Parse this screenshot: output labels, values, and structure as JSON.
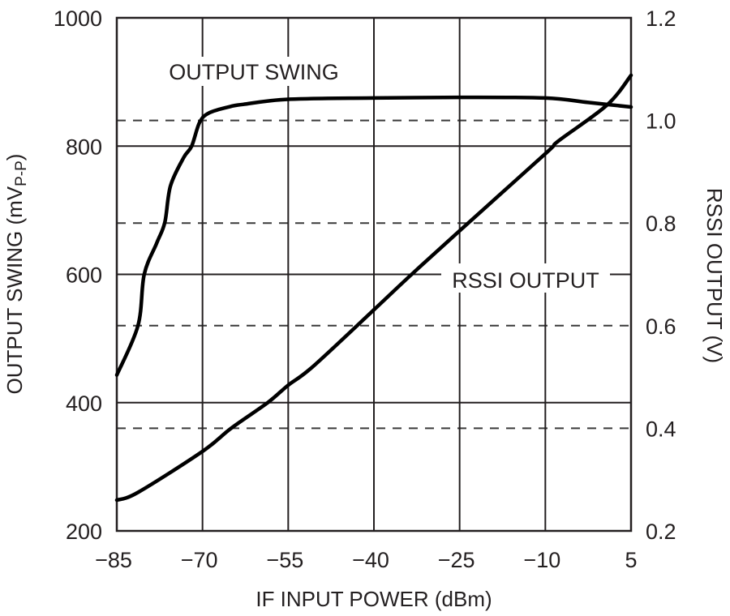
{
  "chart_data": {
    "type": "line",
    "title": "",
    "xlabel": "IF INPUT POWER (dBm)",
    "ylabel": "OUTPUT SWING (mVP-P)",
    "ylabel_right": "RSSI OUTPUT (V)",
    "xlim": [
      -85,
      5
    ],
    "ylim": [
      200,
      1000
    ],
    "ylim_right": [
      0.2,
      1.2
    ],
    "x_ticks": [
      -85,
      -70,
      -55,
      -40,
      -25,
      -10,
      5
    ],
    "y_ticks": [
      200,
      400,
      600,
      800,
      1000
    ],
    "y_ticks_right": [
      0.2,
      0.4,
      0.6,
      0.8,
      1.0,
      1.2
    ],
    "grid": true,
    "grid_right_dashed": true,
    "legend": "none (inline curve labels)",
    "annotations": [
      {
        "text": "OUTPUT SWING",
        "x": -62.5,
        "y": 915,
        "axis": "left"
      },
      {
        "text": "RSSI OUTPUT",
        "x": -17,
        "y": 0.7,
        "axis": "right"
      }
    ],
    "series": [
      {
        "name": "OUTPUT SWING",
        "axis": "left",
        "unit": "mVP-P",
        "x": [
          -85,
          -81.3,
          -80.2,
          -78,
          -76.6,
          -75.6,
          -73.3,
          -71.9,
          -70.5,
          -68.8,
          -65,
          -62.9,
          -55,
          -40,
          -25,
          -10,
          -2.5,
          5
        ],
        "values": [
          443,
          520,
          600,
          649,
          681,
          738,
          782,
          800,
          837,
          852,
          862,
          865,
          873,
          875,
          876,
          875,
          868,
          861
        ]
      },
      {
        "name": "RSSI OUTPUT",
        "axis": "right",
        "unit": "V",
        "x": [
          -85,
          -81.3,
          -70,
          -65,
          -58.6,
          -55,
          -50.7,
          -40,
          -33.4,
          -25,
          -10,
          -7.7,
          0.8,
          5
        ],
        "values": [
          0.26,
          0.275,
          0.355,
          0.4,
          0.45,
          0.484,
          0.52,
          0.631,
          0.7,
          0.785,
          0.935,
          0.96,
          1.03,
          1.088
        ]
      }
    ]
  },
  "labels": {
    "x_title": "IF INPUT POWER (dBm)",
    "y_left_title_main": "OUTPUT SWING (mV",
    "y_left_title_sub": "P-P",
    "y_left_title_end": ")",
    "y_right_title": "RSSI OUTPUT (V)",
    "curve_output_swing": "OUTPUT SWING",
    "curve_rssi": "RSSI OUTPUT"
  },
  "colors": {
    "curve": "#000000",
    "grid": "#231f20",
    "dashed_grid": "#3a3a3a",
    "text": "#231f20"
  }
}
